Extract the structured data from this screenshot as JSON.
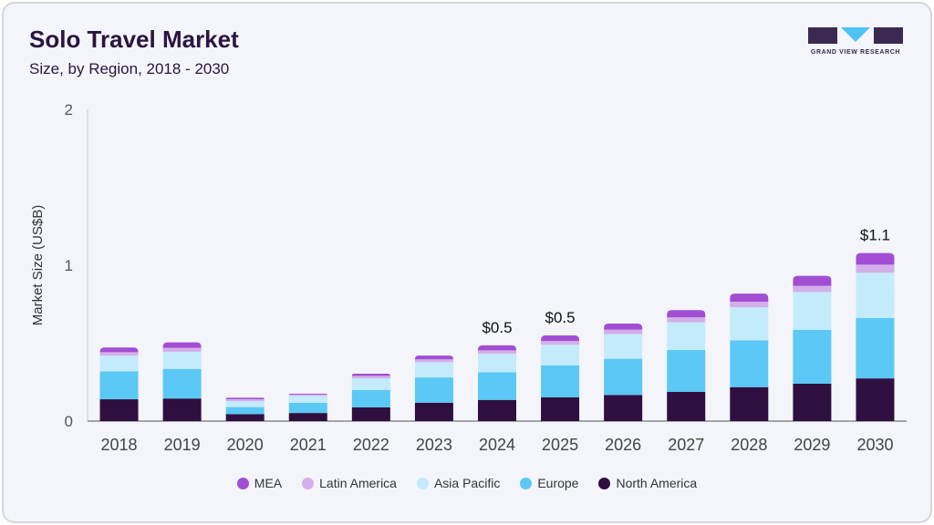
{
  "header": {
    "title": "Solo Travel Market",
    "subtitle": "Size, by Region, 2018 - 2030"
  },
  "logo": {
    "text": "GRAND VIEW RESEARCH",
    "color": "#3a2a52",
    "accent": "#4fc3f7"
  },
  "chart_data": {
    "type": "bar",
    "stacked": true,
    "title": "Solo Travel Market",
    "subtitle": "Size, by Region, 2018 - 2030",
    "xlabel": "",
    "ylabel": "Market Size (US$B)",
    "ylim": [
      0,
      2
    ],
    "yticks": [
      "0",
      "1",
      "2"
    ],
    "legend_position": "bottom",
    "categories": [
      "2018",
      "2019",
      "2020",
      "2021",
      "2022",
      "2023",
      "2024",
      "2025",
      "2026",
      "2027",
      "2028",
      "2029",
      "2030"
    ],
    "series": [
      {
        "name": "North America",
        "color": "#2e0f40",
        "values": [
          0.14,
          0.145,
          0.045,
          0.052,
          0.088,
          0.118,
          0.136,
          0.153,
          0.168,
          0.188,
          0.218,
          0.24,
          0.274
        ]
      },
      {
        "name": "Europe",
        "color": "#5bc8f5",
        "values": [
          0.18,
          0.19,
          0.045,
          0.065,
          0.112,
          0.162,
          0.178,
          0.205,
          0.232,
          0.268,
          0.3,
          0.346,
          0.388
        ]
      },
      {
        "name": "Asia Pacific",
        "color": "#c4ebfb",
        "values": [
          0.1,
          0.11,
          0.038,
          0.045,
          0.075,
          0.098,
          0.118,
          0.132,
          0.158,
          0.178,
          0.212,
          0.242,
          0.29
        ]
      },
      {
        "name": "Latin America",
        "color": "#d4aee8",
        "values": [
          0.022,
          0.025,
          0.012,
          0.008,
          0.015,
          0.018,
          0.022,
          0.024,
          0.028,
          0.032,
          0.036,
          0.04,
          0.052
        ]
      },
      {
        "name": "MEA",
        "color": "#a24ed4",
        "values": [
          0.03,
          0.035,
          0.01,
          0.006,
          0.014,
          0.024,
          0.032,
          0.036,
          0.04,
          0.046,
          0.052,
          0.064,
          0.074
        ]
      }
    ],
    "annotations": [
      {
        "category": "2024",
        "label": "$0.5"
      },
      {
        "category": "2025",
        "label": "$0.5"
      },
      {
        "category": "2030",
        "label": "$1.1"
      }
    ]
  }
}
